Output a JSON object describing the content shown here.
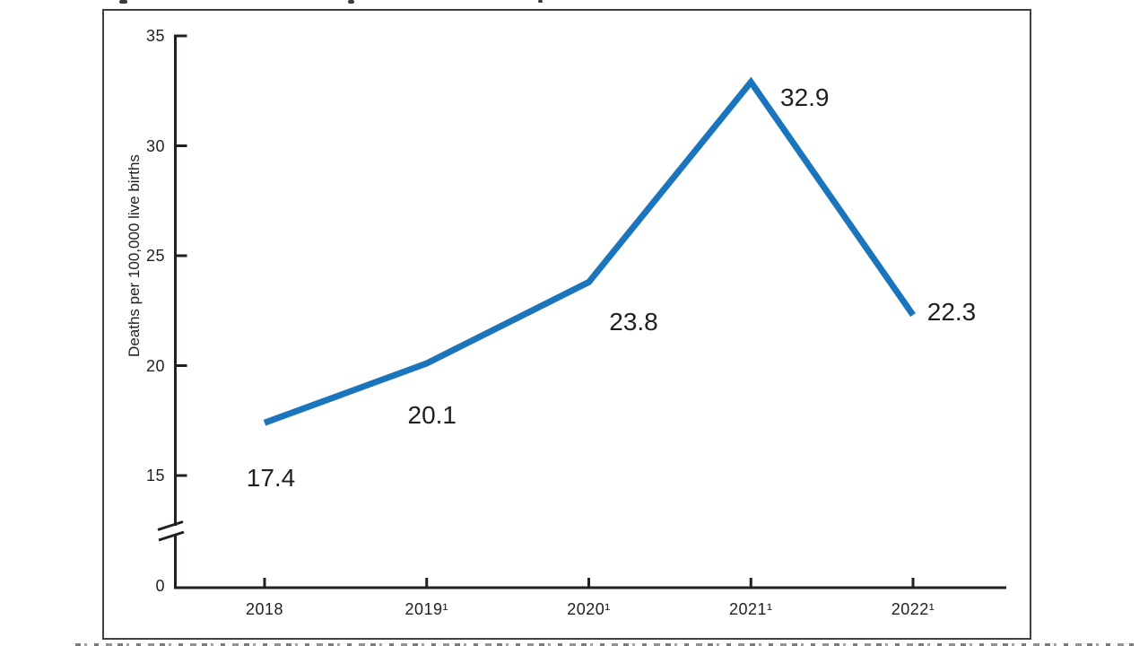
{
  "chart_data": {
    "type": "line",
    "categories": [
      "2018",
      "2019¹",
      "2020¹",
      "2021¹",
      "2022¹"
    ],
    "values": [
      17.4,
      20.1,
      23.8,
      32.9,
      22.3
    ],
    "point_labels": [
      "17.4",
      "20.1",
      "23.8",
      "32.9",
      "22.3"
    ],
    "title": "",
    "xlabel": "",
    "ylabel": "Deaths per 100,000 live births",
    "yticks": [
      0,
      15,
      20,
      25,
      30,
      35
    ],
    "ylim": [
      0,
      35
    ],
    "axis_break": true,
    "grid": false,
    "legend_position": "none",
    "line_color": "#1b75bc",
    "axis_color": "#231f20",
    "frame_border_color": "#414042",
    "background_color": "#ffffff"
  }
}
